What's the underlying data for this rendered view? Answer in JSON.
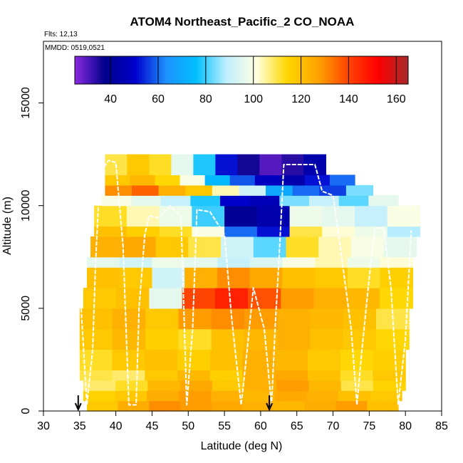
{
  "chart_data": {
    "type": "heatmap",
    "title": "ATOM4 Northeast_Pacific_2 CO_NOAA",
    "flights_label": "Flts: 12,13",
    "dates_label": "MMDD: 0519,0521",
    "xlabel": "Latitude (deg N)",
    "ylabel": "Altitude (m)",
    "xlim": [
      30,
      85
    ],
    "ylim": [
      0,
      18000
    ],
    "x_ticks": [
      "30",
      "35",
      "40",
      "45",
      "50",
      "55",
      "60",
      "65",
      "70",
      "75",
      "80",
      "85"
    ],
    "y_ticks": [
      "0",
      "5000",
      "10000",
      "15000"
    ],
    "colorbar": {
      "range": [
        25,
        165
      ],
      "tick_labels": [
        "40",
        "60",
        "80",
        "100",
        "120",
        "140",
        "160"
      ],
      "colors": [
        "#8a2be2",
        "#00008b",
        "#0000cd",
        "#1e90ff",
        "#00bfff",
        "#bfefff",
        "#ffffe0",
        "#ffd700",
        "#ffa500",
        "#ff4500",
        "#ff0000",
        "#a52a2a"
      ]
    },
    "markers": [
      {
        "latitude": 34.8,
        "label": "arrow"
      },
      {
        "latitude": 61.2,
        "label": "arrow"
      }
    ],
    "curtain_bands": [
      {
        "alt_min": 0,
        "alt_max": 500,
        "lat_min": 36,
        "lat_max": 79,
        "values": [
          118,
          125,
          130,
          128,
          126,
          124,
          122,
          125,
          128,
          120
        ]
      },
      {
        "alt_min": 500,
        "alt_max": 1000,
        "lat_min": 35.5,
        "lat_max": 79.5,
        "values": [
          115,
          118,
          125,
          128,
          124,
          122,
          126,
          124,
          120,
          118
        ]
      },
      {
        "alt_min": 1000,
        "alt_max": 1500,
        "lat_min": 35.5,
        "lat_max": 80,
        "values": [
          108,
          112,
          122,
          126,
          118,
          124,
          128,
          122,
          110,
          115
        ]
      },
      {
        "alt_min": 1500,
        "alt_max": 2000,
        "lat_min": 35,
        "lat_max": 80,
        "values": [
          110,
          108,
          118,
          122,
          116,
          124,
          126,
          120,
          112,
          118
        ]
      },
      {
        "alt_min": 2000,
        "alt_max": 3000,
        "lat_min": 35,
        "lat_max": 80,
        "values": [
          112,
          118,
          120,
          116,
          120,
          124,
          122,
          118,
          114,
          116
        ]
      },
      {
        "alt_min": 3000,
        "alt_max": 4000,
        "lat_min": 35,
        "lat_max": 80.5,
        "values": [
          118,
          122,
          116,
          112,
          120,
          122,
          124,
          120,
          118,
          114
        ]
      },
      {
        "alt_min": 4000,
        "alt_max": 5000,
        "lat_min": 35,
        "lat_max": 80.5,
        "values": [
          120,
          124,
          118,
          128,
          130,
          128,
          124,
          122,
          120,
          110
        ]
      },
      {
        "alt_min": 5000,
        "alt_max": 6000,
        "lat_min": 35.5,
        "lat_max": 81,
        "values": [
          118,
          120,
          96,
          140,
          146,
          138,
          128,
          124,
          122,
          114
        ]
      },
      {
        "alt_min": 6000,
        "alt_max": 7000,
        "lat_min": 36,
        "lat_max": 81,
        "values": [
          120,
          118,
          92,
          124,
          130,
          126,
          120,
          118,
          112,
          116
        ]
      },
      {
        "alt_min": 7000,
        "alt_max": 7500,
        "lat_min": 36,
        "lat_max": 81,
        "values": [
          96,
          92,
          98,
          96,
          90,
          94,
          100,
          104,
          98,
          102
        ]
      },
      {
        "alt_min": 7500,
        "alt_max": 8500,
        "lat_min": 36.5,
        "lat_max": 81.5,
        "values": [
          124,
          126,
          118,
          110,
          92,
          82,
          112,
          104,
          100,
          96
        ]
      },
      {
        "alt_min": 8500,
        "alt_max": 9000,
        "lat_min": 37,
        "lat_max": 82,
        "values": [
          120,
          116,
          112,
          100,
          60,
          52,
          110,
          102,
          98,
          88
        ]
      },
      {
        "alt_min": 9000,
        "alt_max": 10000,
        "lat_min": 37,
        "lat_max": 82,
        "values": [
          112,
          104,
          98,
          80,
          40,
          44,
          98,
          96,
          90,
          100
        ]
      },
      {
        "alt_min": 10000,
        "alt_max": 10500,
        "lat_min": 38,
        "lat_max": 79,
        "values": [
          100,
          96,
          90,
          78,
          50,
          46,
          84,
          90,
          82,
          96
        ]
      },
      {
        "alt_min": 10500,
        "alt_max": 11000,
        "lat_min": 38.5,
        "lat_max": 75.5,
        "values": [
          130,
          136,
          124,
          118,
          104,
          92,
          70,
          60,
          56,
          84
        ]
      },
      {
        "alt_min": 11000,
        "alt_max": 11500,
        "lat_min": 38.5,
        "lat_max": 73,
        "values": [
          118,
          122,
          114,
          100,
          74,
          58,
          48,
          44,
          52,
          60
        ]
      },
      {
        "alt_min": 11500,
        "alt_max": 12500,
        "lat_min": 38.5,
        "lat_max": 69,
        "values": [
          110,
          118,
          112,
          96,
          78,
          52,
          36,
          30,
          34,
          44
        ]
      }
    ],
    "flight_track": [
      [
        35.2,
        5000
      ],
      [
        36.0,
        300
      ],
      [
        36.8,
        3000
      ],
      [
        37.2,
        7200
      ],
      [
        37.8,
        11600
      ],
      [
        39.0,
        12200
      ],
      [
        40.0,
        12100
      ],
      [
        41.0,
        8000
      ],
      [
        41.8,
        300
      ],
      [
        42.8,
        300
      ],
      [
        43.2,
        5000
      ],
      [
        44.0,
        8600
      ],
      [
        44.6,
        9500
      ],
      [
        46.0,
        9400
      ],
      [
        47.5,
        10000
      ],
      [
        49.0,
        9500
      ],
      [
        49.8,
        300
      ],
      [
        50.6,
        4000
      ],
      [
        51.2,
        9800
      ],
      [
        53.0,
        9700
      ],
      [
        55.0,
        8600
      ],
      [
        56.0,
        4500
      ],
      [
        57.3,
        300
      ],
      [
        58.0,
        2500
      ],
      [
        59.0,
        6000
      ],
      [
        60.5,
        4000
      ],
      [
        61.5,
        300
      ],
      [
        62.0,
        4000
      ],
      [
        62.6,
        7800
      ],
      [
        63.0,
        10600
      ],
      [
        63.2,
        12000
      ],
      [
        67.5,
        12000
      ],
      [
        68.5,
        10700
      ],
      [
        70.0,
        10500
      ],
      [
        71.0,
        8000
      ],
      [
        72.5,
        4000
      ],
      [
        73.3,
        300
      ],
      [
        74.0,
        3000
      ],
      [
        75.0,
        6500
      ],
      [
        75.8,
        8900
      ],
      [
        77.0,
        8900
      ],
      [
        78.0,
        6000
      ],
      [
        79.0,
        300
      ],
      [
        80.0,
        3500
      ],
      [
        80.8,
        8800
      ]
    ]
  }
}
